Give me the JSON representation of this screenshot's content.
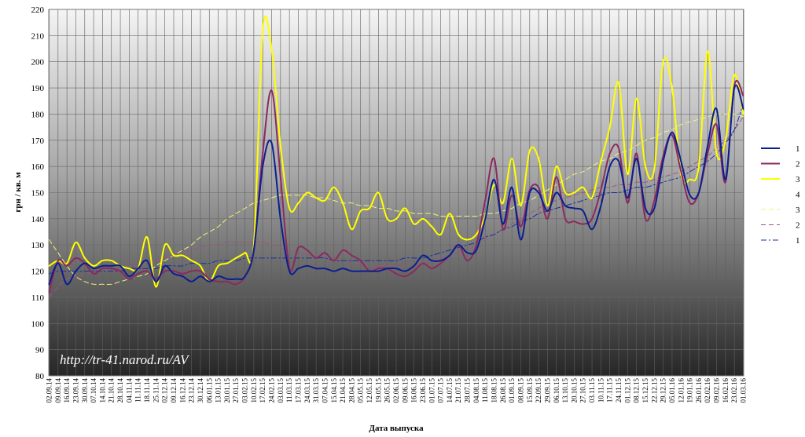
{
  "chart_data": {
    "type": "line",
    "xlabel": "Дата выпуска",
    "ylabel": "грн / кв. м",
    "ylim": [
      80,
      220
    ],
    "y_ticks": [
      80,
      90,
      100,
      110,
      120,
      130,
      140,
      150,
      160,
      170,
      180,
      190,
      200,
      210,
      220
    ],
    "watermark": "http://tr-41.narod.ru/AV",
    "grid": "vertical and horizontal",
    "background": "gradient grey",
    "legend_position": "right",
    "categories": [
      "02.09.14",
      "09.09.14",
      "16.09.14",
      "23.09.14",
      "30.09.14",
      "07.10.14",
      "14.10.14",
      "21.10.14",
      "28.10.14",
      "04.11.14",
      "11.11.14",
      "18.11.14",
      "25.11.14",
      "02.12.14",
      "09.12.14",
      "16.12.14",
      "23.12.14",
      "30.12.14",
      "06.01.15",
      "13.01.15",
      "20.01.15",
      "27.01.15",
      "03.02.15",
      "10.02.15",
      "17.02.15",
      "24.02.15",
      "03.03.15",
      "11.03.15",
      "17.03.15",
      "24.03.15",
      "31.03.15",
      "07.04.15",
      "15.04.15",
      "21.04.15",
      "28.04.15",
      "05.05.15",
      "12.05.15",
      "19.05.15",
      "26.05.15",
      "02.06.15",
      "09.06.15",
      "16.06.15",
      "23.06.15",
      "01.07.15",
      "07.07.15",
      "14.07.15",
      "21.07.15",
      "28.07.15",
      "04.08.15",
      "11.08.15",
      "18.08.15",
      "26.08.15",
      "01.09.15",
      "08.09.15",
      "15.09.15",
      "22.09.15",
      "29.09.15",
      "06.10.15",
      "13.10.15",
      "20.10.15",
      "27.10.15",
      "03.11.15",
      "10.11.15",
      "17.11.15",
      "24.11.15",
      "01.12.15",
      "08.12.15",
      "15.12.15",
      "22.12.15",
      "29.12.15",
      "05.01.16",
      "12.01.16",
      "19.01.16",
      "26.01.16",
      "02.02.16",
      "09.02.16",
      "16.02.16",
      "23.02.16",
      "01.03.16"
    ],
    "series": [
      {
        "name": "1",
        "color": "#0b1f8f",
        "style": "solid",
        "width": 2,
        "values": [
          115,
          123,
          115,
          120,
          123,
          121,
          122,
          122,
          122,
          118,
          121,
          124,
          116,
          122,
          119,
          118,
          116,
          118,
          116,
          118,
          117,
          117,
          118,
          128,
          160,
          169,
          140,
          120,
          121,
          122,
          121,
          121,
          120,
          121,
          120,
          120,
          120,
          120,
          121,
          121,
          120,
          122,
          126,
          124,
          124,
          126,
          130,
          127,
          128,
          140,
          155,
          138,
          152,
          132,
          150,
          150,
          143,
          150,
          145,
          144,
          143,
          136,
          145,
          160,
          162,
          148,
          163,
          144,
          144,
          162,
          173,
          162,
          149,
          150,
          168,
          182,
          155,
          190,
          182
        ]
      },
      {
        "name": "2",
        "color": "#8b2a5f",
        "style": "solid",
        "width": 2,
        "values": [
          112,
          124,
          122,
          125,
          123,
          119,
          121,
          121,
          120,
          117,
          119,
          120,
          117,
          120,
          120,
          119,
          120,
          120,
          117,
          116,
          116,
          115,
          118,
          128,
          165,
          189,
          156,
          121,
          129,
          128,
          125,
          127,
          124,
          128,
          126,
          124,
          120,
          121,
          121,
          119,
          118,
          120,
          123,
          121,
          123,
          126,
          130,
          124,
          130,
          147,
          163,
          136,
          149,
          137,
          151,
          152,
          140,
          156,
          140,
          139,
          138,
          140,
          151,
          165,
          167,
          146,
          165,
          140,
          147,
          164,
          172,
          158,
          146,
          150,
          165,
          176,
          154,
          191,
          187
        ]
      },
      {
        "name": "3",
        "color": "#ffff00",
        "style": "solid",
        "width": 2,
        "values": [
          122,
          124,
          123,
          131,
          125,
          122,
          124,
          124,
          122,
          121,
          121,
          133,
          114,
          130,
          126,
          126,
          124,
          122,
          116,
          122,
          123,
          125,
          127,
          130,
          212,
          205,
          168,
          144,
          146,
          150,
          148,
          147,
          152,
          146,
          136,
          143,
          144,
          150,
          140,
          140,
          144,
          138,
          140,
          137,
          134,
          142,
          134,
          132,
          134,
          141,
          153,
          146,
          163,
          145,
          166,
          163,
          145,
          160,
          150,
          150,
          152,
          148,
          162,
          175,
          192,
          157,
          186,
          160,
          159,
          200,
          190,
          157,
          155,
          160,
          204,
          165,
          170,
          195,
          180
        ]
      },
      {
        "name": "3",
        "color": "#f2f27a",
        "style": "dash",
        "width": 1,
        "values": [
          132,
          127,
          122,
          118,
          116,
          115,
          115,
          115,
          116,
          117,
          118,
          119,
          122,
          124,
          126,
          128,
          130,
          133,
          135,
          137,
          140,
          142,
          144,
          146,
          147,
          148,
          149,
          149,
          149,
          149,
          148,
          148,
          147,
          146,
          146,
          145,
          145,
          144,
          144,
          143,
          143,
          142,
          142,
          142,
          141,
          141,
          141,
          141,
          141,
          142,
          142,
          143,
          144,
          146,
          147,
          149,
          151,
          153,
          155,
          157,
          158,
          160,
          162,
          163,
          165,
          166,
          168,
          170,
          171,
          173,
          174,
          176,
          177,
          178,
          179,
          180,
          180,
          180,
          179
        ]
      },
      {
        "name": "2",
        "color": "#9e5580",
        "style": "dash",
        "width": 1,
        "values": [
          110,
          114,
          117,
          118,
          119,
          120,
          120,
          120,
          121,
          122,
          122,
          123,
          124,
          125,
          126,
          127,
          128,
          129,
          130,
          130,
          131,
          131,
          131,
          131,
          131,
          130,
          129,
          128,
          127,
          126,
          126,
          125,
          124,
          124,
          123,
          123,
          122,
          122,
          122,
          122,
          122,
          123,
          123,
          124,
          125,
          126,
          127,
          128,
          130,
          132,
          134,
          136,
          138,
          140,
          142,
          144,
          146,
          147,
          148,
          149,
          150,
          151,
          152,
          152,
          153,
          153,
          154,
          154,
          155,
          156,
          157,
          158,
          160,
          162,
          164,
          167,
          170,
          174,
          179
        ]
      },
      {
        "name": "1",
        "color": "#1a2fa0",
        "style": "dashdot",
        "width": 1,
        "values": [
          119,
          120,
          120,
          120,
          120,
          120,
          120,
          120,
          120,
          121,
          121,
          121,
          121,
          122,
          122,
          122,
          123,
          123,
          123,
          124,
          124,
          124,
          125,
          125,
          125,
          125,
          125,
          125,
          125,
          125,
          125,
          125,
          124,
          124,
          124,
          124,
          124,
          124,
          124,
          124,
          125,
          125,
          125,
          126,
          127,
          128,
          129,
          130,
          131,
          133,
          134,
          136,
          137,
          139,
          140,
          142,
          143,
          144,
          145,
          146,
          147,
          148,
          149,
          150,
          150,
          151,
          152,
          152,
          153,
          154,
          155,
          156,
          158,
          160,
          162,
          165,
          169,
          174,
          184
        ]
      }
    ],
    "legend": [
      {
        "label": "1",
        "color": "#0b1f8f",
        "style": "solid"
      },
      {
        "label": "2",
        "color": "#8b2a5f",
        "style": "solid"
      },
      {
        "label": "3",
        "color": "#ffff00",
        "style": "solid"
      },
      {
        "label": "4",
        "color": "",
        "style": "none"
      },
      {
        "label": "3",
        "color": "#f2f27a",
        "style": "dash"
      },
      {
        "label": "2",
        "color": "#9e5580",
        "style": "dash"
      },
      {
        "label": "1",
        "color": "#1a2fa0",
        "style": "dashdot"
      }
    ]
  }
}
